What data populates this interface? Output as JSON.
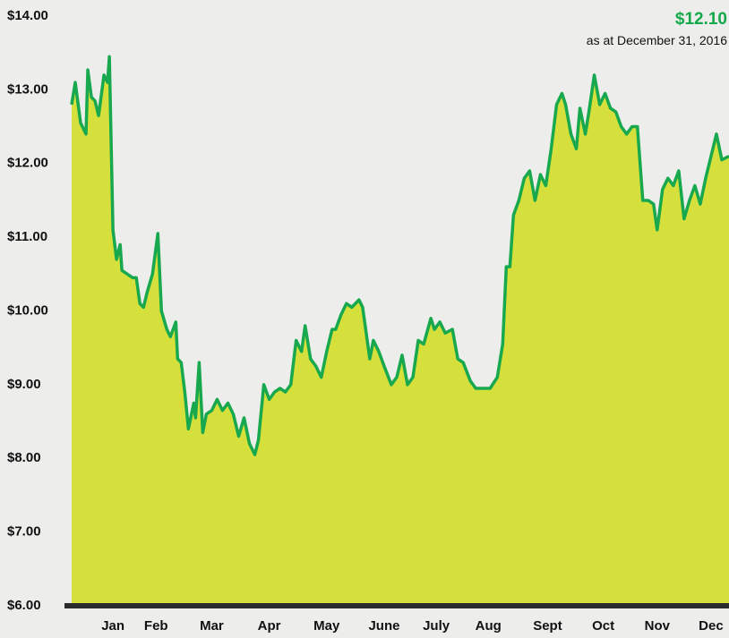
{
  "chart_data": {
    "type": "area",
    "annotation": {
      "value": "$12.10",
      "text": "as at December 31, 2016"
    },
    "fill_color": "#d5e03c",
    "line_color": "#18a84e",
    "xlim": [
      0,
      366
    ],
    "ylim": [
      6,
      14
    ],
    "yticks": [
      {
        "value": 6,
        "label": "$6.00"
      },
      {
        "value": 7,
        "label": "$7.00"
      },
      {
        "value": 8,
        "label": "$8.00"
      },
      {
        "value": 9,
        "label": "$9.00"
      },
      {
        "value": 10,
        "label": "$10.00"
      },
      {
        "value": 11,
        "label": "$11.00"
      },
      {
        "value": 12,
        "label": "$12.00"
      },
      {
        "value": 13,
        "label": "$13.00"
      },
      {
        "value": 14,
        "label": "$14.00"
      }
    ],
    "xticks": [
      {
        "value": 23,
        "label": "Jan"
      },
      {
        "value": 47,
        "label": "Feb"
      },
      {
        "value": 78,
        "label": "Mar"
      },
      {
        "value": 110,
        "label": "Apr"
      },
      {
        "value": 142,
        "label": "May"
      },
      {
        "value": 174,
        "label": "June"
      },
      {
        "value": 203,
        "label": "July"
      },
      {
        "value": 232,
        "label": "Aug"
      },
      {
        "value": 265,
        "label": "Sept"
      },
      {
        "value": 296,
        "label": "Oct"
      },
      {
        "value": 326,
        "label": "Nov"
      },
      {
        "value": 356,
        "label": "Dec"
      }
    ],
    "x": [
      0,
      2,
      5,
      8,
      9,
      11,
      13,
      15,
      18,
      20,
      21,
      23,
      25,
      27,
      28,
      31,
      34,
      36,
      38,
      40,
      42,
      45,
      48,
      50,
      53,
      55,
      58,
      59,
      61,
      63,
      65,
      68,
      69,
      71,
      73,
      75,
      78,
      81,
      84,
      87,
      90,
      93,
      96,
      99,
      102,
      104,
      107,
      110,
      113,
      116,
      119,
      122,
      125,
      128,
      130,
      133,
      136,
      139,
      142,
      145,
      147,
      150,
      153,
      156,
      160,
      162,
      166,
      168,
      171,
      174,
      178,
      181,
      184,
      187,
      190,
      193,
      196,
      200,
      202,
      205,
      208,
      212,
      215,
      218,
      222,
      225,
      229,
      233,
      237,
      240,
      242,
      244,
      246,
      249,
      252,
      255,
      258,
      261,
      264,
      267,
      270,
      273,
      275,
      278,
      281,
      283,
      286,
      288,
      291,
      294,
      297,
      300,
      303,
      306,
      309,
      312,
      315,
      318,
      321,
      324,
      326,
      329,
      332,
      335,
      338,
      341,
      344,
      347,
      350,
      353,
      356,
      359,
      362,
      366
    ],
    "values": [
      12.8,
      13.1,
      12.55,
      12.4,
      13.27,
      12.9,
      12.85,
      12.65,
      13.2,
      13.1,
      13.45,
      11.1,
      10.7,
      10.9,
      10.55,
      10.5,
      10.45,
      10.45,
      10.1,
      10.05,
      10.25,
      10.5,
      11.05,
      10.0,
      9.75,
      9.65,
      9.85,
      9.35,
      9.3,
      8.9,
      8.4,
      8.75,
      8.55,
      9.3,
      8.35,
      8.6,
      8.65,
      8.8,
      8.65,
      8.75,
      8.6,
      8.3,
      8.55,
      8.2,
      8.05,
      8.25,
      9.0,
      8.8,
      8.9,
      8.95,
      8.9,
      9.0,
      9.6,
      9.45,
      9.8,
      9.35,
      9.25,
      9.1,
      9.45,
      9.75,
      9.75,
      9.95,
      10.1,
      10.05,
      10.15,
      10.05,
      9.35,
      9.6,
      9.45,
      9.25,
      9.0,
      9.1,
      9.4,
      9.0,
      9.1,
      9.6,
      9.55,
      9.9,
      9.75,
      9.85,
      9.7,
      9.75,
      9.35,
      9.3,
      9.05,
      8.95,
      8.95,
      8.95,
      9.1,
      9.55,
      10.6,
      10.6,
      11.3,
      11.5,
      11.8,
      11.9,
      11.5,
      11.85,
      11.7,
      12.2,
      12.8,
      12.95,
      12.8,
      12.4,
      12.2,
      12.75,
      12.4,
      12.7,
      13.2,
      12.8,
      12.95,
      12.75,
      12.7,
      12.5,
      12.4,
      12.5,
      12.5,
      11.5,
      11.5,
      11.45,
      11.1,
      11.65,
      11.8,
      11.7,
      11.9,
      11.25,
      11.5,
      11.7,
      11.45,
      11.8,
      12.1,
      12.4,
      12.05,
      12.1
    ]
  }
}
